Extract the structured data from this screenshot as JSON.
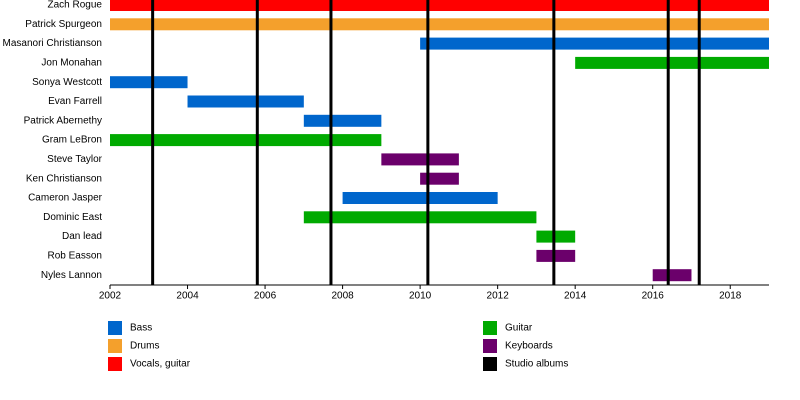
{
  "chart_data": {
    "type": "timeline",
    "categories": [
      "Zach Rogue",
      "Patrick Spurgeon",
      "Masanori Christianson",
      "Jon Monahan",
      "Sonya Westcott",
      "Evan Farrell",
      "Patrick Abernethy",
      "Gram LeBron",
      "Steve Taylor",
      "Ken Christianson",
      "Cameron Jasper",
      "Dominic East",
      "Dan lead",
      "Rob Easson",
      "Nyles Lannon"
    ],
    "start": [
      2002,
      2002,
      2010,
      2014,
      2002,
      2004,
      2007,
      2002,
      2009,
      2010,
      2008,
      2007,
      2013,
      2013,
      2016
    ],
    "end": [
      2019,
      2019,
      2019,
      2019,
      2004,
      2007,
      2009,
      2009,
      2011,
      2011,
      2012,
      2013,
      2014,
      2014,
      2017
    ],
    "colors": [
      "#ff0000",
      "#f4a02c",
      "#0066cc",
      "#00aa00",
      "#0066cc",
      "#0066cc",
      "#0066cc",
      "#00aa00",
      "#6b006b",
      "#6b006b",
      "#0066cc",
      "#00aa00",
      "#00aa00",
      "#6b006b",
      "#6b006b"
    ],
    "legend": [
      {
        "name": "Bass",
        "color": "#0066cc"
      },
      {
        "name": "Drums",
        "color": "#f4a02c"
      },
      {
        "name": "Vocals, guitar",
        "color": "#ff0000"
      },
      {
        "name": "Guitar",
        "color": "#00aa00"
      },
      {
        "name": "Keyboards",
        "color": "#6b006b"
      }
    ],
    "albums": {
      "name": "Studio albums",
      "color": "#000000",
      "x": [
        2003.1,
        2005.8,
        2007.7,
        2010.2,
        2013.45,
        2016.4,
        2017.2
      ]
    },
    "xlim": [
      2002,
      2019
    ],
    "xticks": [
      2002,
      2004,
      2006,
      2008,
      2010,
      2012,
      2014,
      2016,
      2018
    ]
  }
}
